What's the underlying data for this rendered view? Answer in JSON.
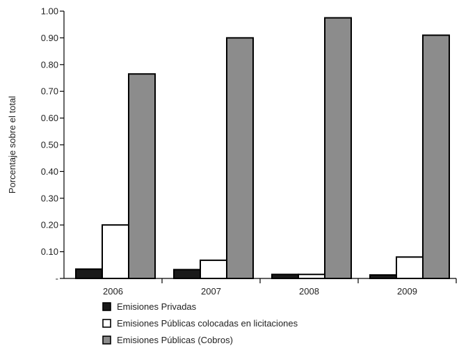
{
  "chart_data": {
    "type": "bar",
    "title": "",
    "xlabel": "",
    "ylabel": "Porcentaje sobre el total",
    "categories": [
      "2006",
      "2007",
      "2008",
      "2009"
    ],
    "ylim": [
      0,
      1.0
    ],
    "yticks": [
      {
        "value": 0,
        "label": "-"
      },
      {
        "value": 0.1,
        "label": "0.10"
      },
      {
        "value": 0.2,
        "label": "0.20"
      },
      {
        "value": 0.3,
        "label": "0.30"
      },
      {
        "value": 0.4,
        "label": "0.40"
      },
      {
        "value": 0.5,
        "label": "0.50"
      },
      {
        "value": 0.6,
        "label": "0.60"
      },
      {
        "value": 0.7,
        "label": "0.70"
      },
      {
        "value": 0.8,
        "label": "0.80"
      },
      {
        "value": 0.9,
        "label": "0.90"
      },
      {
        "value": 1.0,
        "label": "1.00"
      }
    ],
    "grid": false,
    "legend_position": "bottom",
    "series": [
      {
        "name": "Emisiones Privadas",
        "values": [
          0.035,
          0.033,
          0.015,
          0.013
        ],
        "color": "#1a1a1a"
      },
      {
        "name": "Emisiones Públicas colocadas en licitaciones",
        "values": [
          0.2,
          0.068,
          0.015,
          0.08
        ],
        "color": "#ffffff"
      },
      {
        "name": "Emisiones Públicas (Cobros)",
        "values": [
          0.765,
          0.9,
          0.975,
          0.91
        ],
        "color": "#8c8c8c"
      }
    ]
  }
}
